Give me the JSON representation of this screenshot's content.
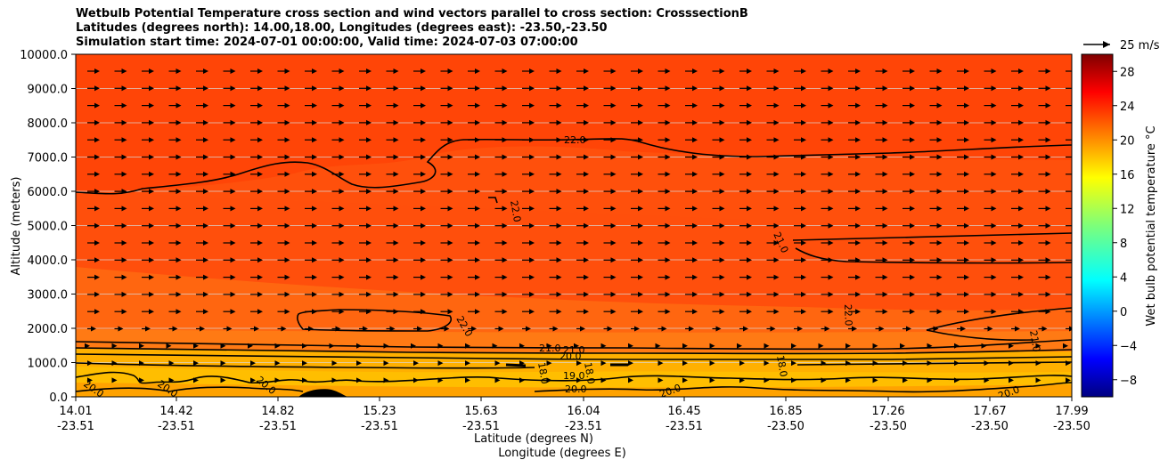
{
  "chart_data": {
    "type": "heatmap",
    "title_lines": [
      "Wetbulb Potential Temperature cross section and wind vectors parallel to cross section: CrosssectionB",
      "Latitudes (degrees north): 14.00,18.00, Longitudes (degrees east): -23.50,-23.50",
      "Simulation start time: 2024-07-01 00:00:00, Valid time: 2024-07-03 07:00:00"
    ],
    "ylabel": "Altitude (meters)",
    "xlabel_lat": "Latitude (degrees N)",
    "xlabel_lon": "Longitude (degrees E)",
    "ylim": [
      0,
      10000
    ],
    "y_ticks": [
      "0.0",
      "1000.0",
      "2000.0",
      "3000.0",
      "4000.0",
      "5000.0",
      "6000.0",
      "7000.0",
      "8000.0",
      "9000.0",
      "10000.0"
    ],
    "x_ticks_lat": [
      "14.01",
      "14.42",
      "14.82",
      "15.23",
      "15.63",
      "16.04",
      "16.45",
      "16.85",
      "17.26",
      "17.67",
      "17.99"
    ],
    "x_ticks_lon": [
      "-23.51",
      "-23.51",
      "-23.51",
      "-23.51",
      "-23.51",
      "-23.51",
      "-23.51",
      "-23.50",
      "-23.50",
      "-23.50",
      "-23.50"
    ],
    "grid": "horizontal",
    "colorbar": {
      "label": "Wet bulb potential temperature °C",
      "ticks": [
        "−8",
        "−4",
        "0",
        "4",
        "8",
        "12",
        "16",
        "20",
        "24",
        "28"
      ],
      "range": [
        -10,
        30
      ]
    },
    "wind_reference": "25 m/s",
    "contour_labels": [
      "22.0",
      "22.0",
      "22.0",
      "22.0",
      "21.0",
      "21.0",
      "21.0",
      "21.0",
      "20.0",
      "20.0",
      "20.0",
      "20.0",
      "20.0",
      "20.0",
      "19.0",
      "18.0",
      "18.0",
      "18.0"
    ]
  }
}
